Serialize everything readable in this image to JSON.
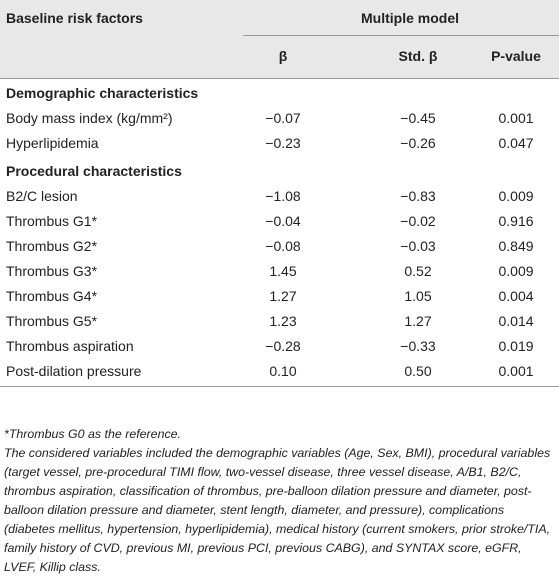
{
  "header": {
    "first": "Baseline risk factors",
    "group": "Multiple model",
    "columns": [
      "β",
      "Std. β",
      "P-value"
    ]
  },
  "sections": [
    {
      "title": "Demographic characteristics",
      "rows": [
        [
          "Body mass index (kg/mm²)",
          "−0.07",
          "−0.45",
          "0.001"
        ],
        [
          "Hyperlipidemia",
          "−0.23",
          "−0.26",
          "0.047"
        ]
      ]
    },
    {
      "title": "Procedural characteristics",
      "rows": [
        [
          "B2/C lesion",
          "−1.08",
          "−0.83",
          "0.009"
        ],
        [
          "Thrombus G1*",
          "−0.04",
          "−0.02",
          "0.916"
        ],
        [
          "Thrombus G2*",
          "−0.08",
          "−0.03",
          "0.849"
        ],
        [
          "Thrombus G3*",
          "1.45",
          "0.52",
          "0.009"
        ],
        [
          "Thrombus G4*",
          "1.27",
          "1.05",
          "0.004"
        ],
        [
          "Thrombus G5*",
          "1.23",
          "1.27",
          "0.014"
        ],
        [
          "Thrombus aspiration",
          "−0.28",
          "−0.33",
          "0.019"
        ],
        [
          "Post-dilation pressure",
          "0.10",
          "0.50",
          "0.001"
        ]
      ]
    }
  ],
  "footnotes": [
    "*Thrombus G0 as the reference.",
    "The considered variables included the demographic variables (Age, Sex, BMI), procedural variables (target vessel, pre-procedural TIMI flow, two-vessel disease, three vessel disease, A/B1, B2/C, thrombus aspiration, classification of thrombus, pre-balloon dilation pressure and diameter, post-balloon dilation pressure and diameter, stent length, diameter, and pressure), complications (diabetes mellitus, hypertension, hyperlipidemia), medical history (current smokers, prior stroke/TIA, family history of CVD, previous MI, previous PCI, previous CABG), and SYNTAX score, eGFR, LVEF, Killip class."
  ]
}
